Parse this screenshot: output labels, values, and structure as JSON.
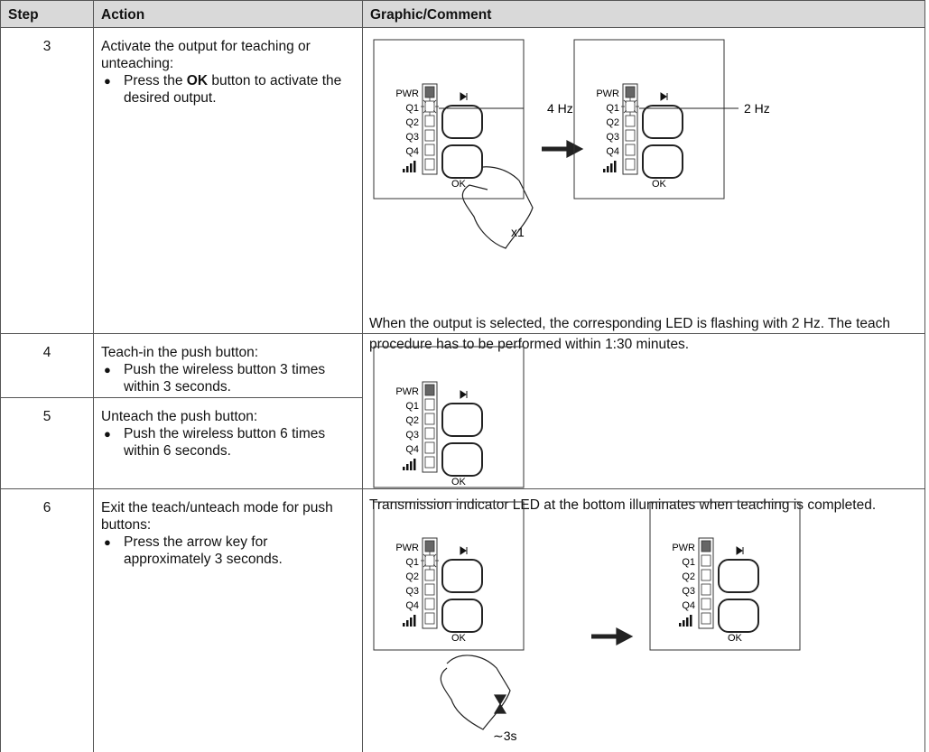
{
  "header": [
    "Step",
    "Action",
    "Graphic/Comment"
  ],
  "rows": [
    {
      "step": "3",
      "action": "Activate the output for teaching or unteaching:",
      "bullet": {
        "before": "Press the",
        "bold": "OK",
        "after": "button to activate the desired output."
      }
    },
    {
      "step": "4",
      "action": "Teach-in the push button:",
      "bullet": "Push the wireless button 3 times within 3 seconds."
    },
    {
      "step": "5",
      "action": "Unteach the push button:",
      "bullet": "Push the wireless button 6 times within 6 seconds."
    },
    {
      "step": "6",
      "action": "Exit the teach/unteach mode for push buttons:",
      "bullet": "Press the arrow key for approximately 3 seconds."
    }
  ],
  "graphics": [
    {
      "comment": "When the output is selected, the corresponding LED is flashing with 2 Hz. The teach procedure has to be performed within 1:30 minutes."
    },
    {
      "comment": "Transmission indicator LED at the bottom illuminates when teaching is completed."
    }
  ],
  "device_labels": [
    "PWR",
    "Q1",
    "Q2",
    "Q3",
    "Q4",
    "OK"
  ],
  "annotations": {
    "freq_before": "4 Hz",
    "freq_after": "2 Hz",
    "press_count": "x1",
    "hold_time": "∼3s"
  }
}
